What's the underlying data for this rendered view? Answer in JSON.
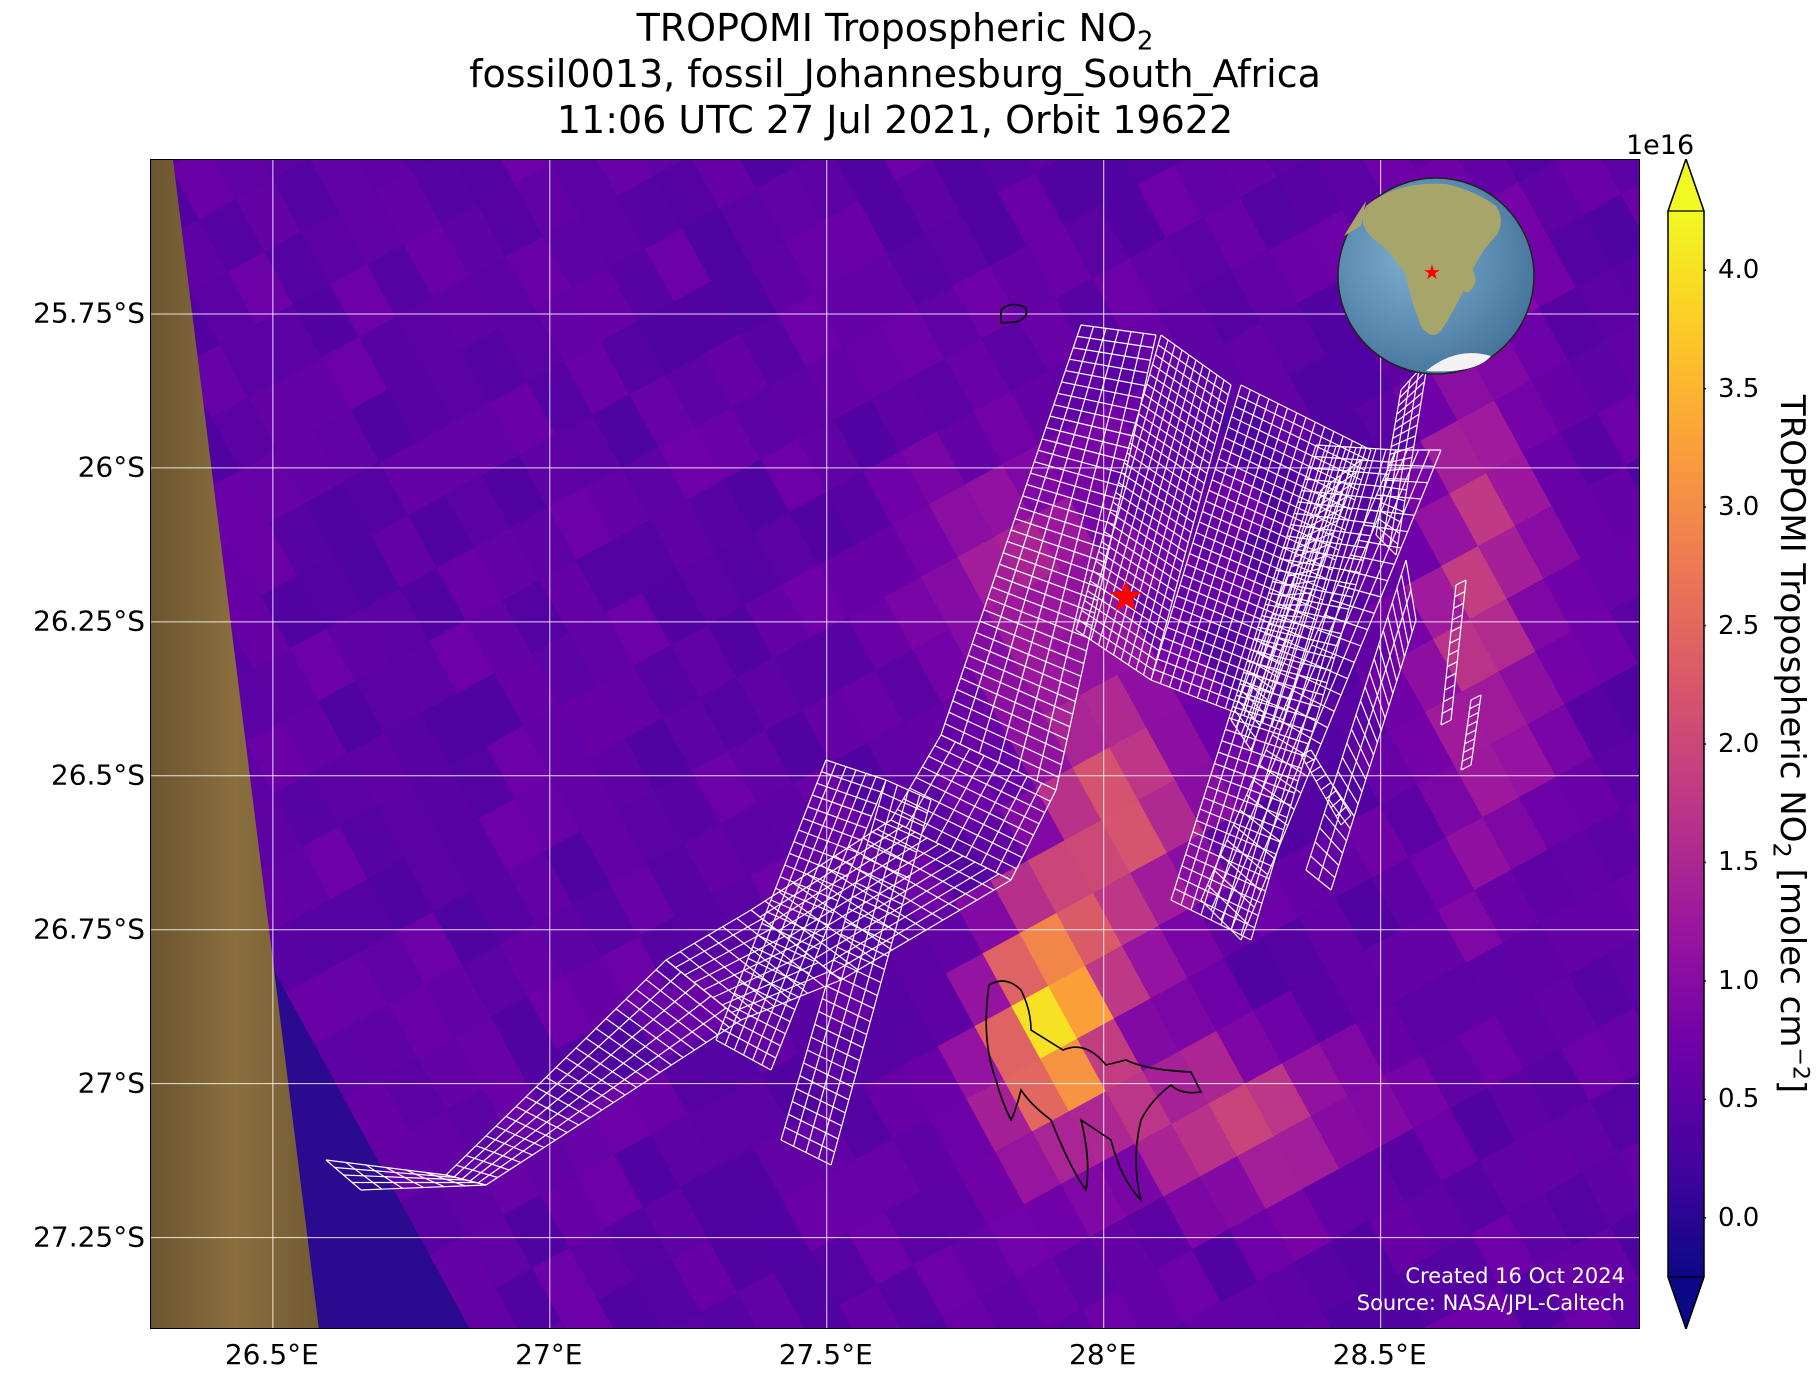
{
  "title": {
    "line1_pre": "TROPOMI Tropospheric NO",
    "line1_sub": "2",
    "line2": "fossil0013, fossil_Johannesburg_South_Africa",
    "line3": "11:06 UTC 27 Jul 2021, Orbit 19622"
  },
  "map": {
    "lon_range": [
      26.28,
      28.97
    ],
    "lat_range": [
      -27.4,
      -25.5
    ],
    "y_ticks": [
      "25.75°S",
      "26°S",
      "26.25°S",
      "26.5°S",
      "26.75°S",
      "27°S",
      "27.25°S"
    ],
    "y_tick_values": [
      -25.75,
      -26.0,
      -26.25,
      -26.5,
      -26.75,
      -27.0,
      -27.25
    ],
    "x_ticks": [
      "26.5°E",
      "27°E",
      "27.5°E",
      "28°E",
      "28.5°E"
    ],
    "x_tick_values": [
      26.5,
      27.0,
      27.5,
      28.0,
      28.5
    ],
    "grid": true,
    "target_marker": {
      "lon": 28.04,
      "lat": -26.21,
      "color": "#ff0000",
      "icon": "star-icon"
    },
    "inset_globe": {
      "icon": "globe-icon",
      "ocean_color": "#5b8fb5",
      "land_color": "#9c9f63"
    },
    "credit_line1": "Created 16 Oct 2024",
    "credit_line2": "Source: NASA/JPL-Caltech"
  },
  "colorbar": {
    "colormap": "plasma",
    "exponent": "1e16",
    "ticks": [
      "0.0",
      "0.5",
      "1.0",
      "1.5",
      "2.0",
      "2.5",
      "3.0",
      "3.5",
      "4.0"
    ],
    "tick_values": [
      0.0,
      0.5,
      1.0,
      1.5,
      2.0,
      2.5,
      3.0,
      3.5,
      4.0
    ],
    "range": [
      -0.25,
      4.25
    ],
    "extend": "both",
    "label_pre": "TROPOMI Tropospheric NO",
    "label_sub": "2",
    "label_mid": " [molec cm",
    "label_sup": "−2",
    "label_post": "]"
  },
  "colors": {
    "plasma_stops": [
      "#0d0887",
      "#46039f",
      "#7201a8",
      "#9c179e",
      "#bd3786",
      "#d8576b",
      "#ed7953",
      "#fb9f3a",
      "#fdca26",
      "#f0f921"
    ],
    "satellite_strip": "#7a6236",
    "grid_line": "#ffffff",
    "footprint_mesh": "#ffffff"
  }
}
